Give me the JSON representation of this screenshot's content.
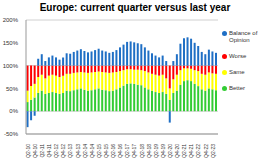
{
  "chart_data": {
    "type": "bar",
    "title": "Europe: current quarter versus last year",
    "stacked": true,
    "grid": true,
    "legend": "right",
    "categories": [
      "Q2-10",
      null,
      "Q4-10",
      null,
      "Q2-11",
      null,
      "Q4-11",
      null,
      "Q2-12",
      null,
      "Q4-12",
      null,
      "Q2-13",
      null,
      "Q4-13",
      null,
      "Q2-14",
      null,
      "Q4-14",
      null,
      "Q2-15",
      null,
      "Q4-15",
      null,
      "Q2-16",
      null,
      "Q4-16",
      null,
      "Q2-17",
      null,
      "Q4-17",
      null,
      "Q2-18",
      null,
      "Q4-18",
      null,
      "Q2-19",
      null,
      "Q4-19",
      null,
      "Q2-20",
      null,
      "Q4-20",
      null,
      "Q2-21",
      null,
      "Q4-21",
      null,
      "Q2-22",
      null,
      "Q4-22",
      null,
      "Q2-23",
      null
    ],
    "ylim": [
      -50,
      200
    ],
    "yticks": [
      {
        "value": -50,
        "label": "-50%"
      },
      {
        "value": 0,
        "label": "0%"
      },
      {
        "value": 50,
        "label": "50%"
      },
      {
        "value": 100,
        "label": "100%"
      },
      {
        "value": 150,
        "label": "150%"
      },
      {
        "value": 200,
        "label": "200%"
      }
    ],
    "series": [
      {
        "name": "Better",
        "color": "#33cc33",
        "values": [
          20,
          25,
          30,
          40,
          45,
          38,
          40,
          42,
          40,
          38,
          40,
          45,
          44,
          46,
          48,
          50,
          47,
          45,
          46,
          48,
          50,
          47,
          46,
          44,
          45,
          48,
          52,
          56,
          60,
          61,
          60,
          58,
          57,
          52,
          48,
          45,
          42,
          40,
          42,
          38,
          25,
          40,
          45,
          58,
          66,
          68,
          66,
          60,
          55,
          48,
          45,
          50,
          48,
          46
        ]
      },
      {
        "name": "Same",
        "color": "#ffff00",
        "values": [
          25,
          30,
          30,
          35,
          35,
          34,
          38,
          38,
          38,
          37,
          38,
          37,
          38,
          38,
          37,
          36,
          38,
          39,
          39,
          38,
          37,
          39,
          39,
          40,
          40,
          38,
          36,
          34,
          32,
          31,
          31,
          33,
          33,
          36,
          37,
          37,
          38,
          38,
          38,
          34,
          25,
          30,
          35,
          32,
          28,
          26,
          27,
          30,
          33,
          34,
          35,
          35,
          35,
          36
        ]
      },
      {
        "name": "Worse",
        "color": "#ff0000",
        "values": [
          55,
          45,
          40,
          25,
          20,
          28,
          22,
          20,
          22,
          25,
          22,
          18,
          18,
          16,
          15,
          14,
          15,
          16,
          15,
          14,
          13,
          14,
          15,
          16,
          15,
          14,
          12,
          10,
          8,
          8,
          9,
          9,
          10,
          12,
          15,
          18,
          20,
          22,
          20,
          28,
          50,
          30,
          20,
          10,
          6,
          6,
          7,
          10,
          12,
          18,
          20,
          15,
          17,
          18
        ]
      },
      {
        "name": "Balance of Opinion",
        "color": "#1f6fc5",
        "values": [
          -35,
          -20,
          -10,
          15,
          25,
          10,
          18,
          22,
          18,
          13,
          18,
          27,
          26,
          30,
          33,
          36,
          32,
          29,
          31,
          34,
          37,
          33,
          31,
          28,
          30,
          34,
          40,
          46,
          52,
          53,
          51,
          49,
          47,
          40,
          33,
          27,
          22,
          18,
          22,
          10,
          -25,
          10,
          25,
          48,
          60,
          62,
          59,
          50,
          43,
          30,
          25,
          35,
          31,
          28
        ]
      }
    ]
  }
}
